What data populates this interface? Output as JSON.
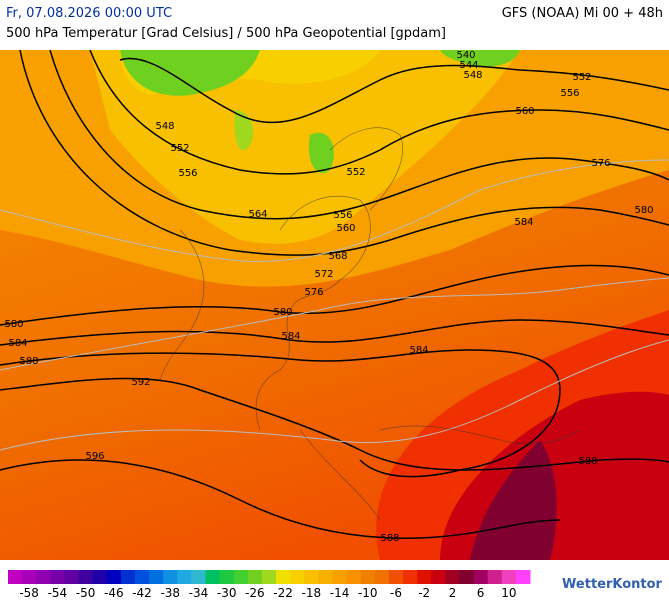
{
  "header": {
    "left": "Fr, 07.08.2026 00:00 UTC",
    "right": "GFS (NOAA) Mi 00 + 48h",
    "subtitle": "500 hPa Temperatur [Grad Celsius] / 500 hPa Geopotential [gpdam]"
  },
  "contour_labels": [
    "540",
    "544",
    "548",
    "552",
    "556",
    "560",
    "576",
    "580",
    "584",
    "548",
    "552",
    "556",
    "564",
    "552",
    "556",
    "560",
    "568",
    "572",
    "576",
    "580",
    "584",
    "580",
    "584",
    "588",
    "592",
    "596",
    "584",
    "588",
    "588"
  ],
  "colorbar": {
    "colors": [
      "#c000c0",
      "#a800b8",
      "#9000b0",
      "#7800a8",
      "#6000a0",
      "#4000a0",
      "#2000a8",
      "#0000c0",
      "#0030d0",
      "#0050e0",
      "#0070e0",
      "#1090e0",
      "#20a8e0",
      "#30b8d0",
      "#00c060",
      "#20c840",
      "#40d030",
      "#70d020",
      "#a0d820",
      "#f0e000",
      "#f8d000",
      "#f8c000",
      "#f8b000",
      "#f8a000",
      "#f89000",
      "#f08000",
      "#f07000",
      "#f05000",
      "#f03000",
      "#e01000",
      "#c80010",
      "#a00020",
      "#800030",
      "#a00060",
      "#d02090",
      "#f040c0",
      "#ff40ff"
    ],
    "labels": [
      -58,
      -54,
      -50,
      -46,
      -42,
      -38,
      -34,
      -30,
      -26,
      -22,
      -18,
      -14,
      -10,
      -6,
      -2,
      2,
      6,
      10
    ]
  },
  "logo": "WetterKontor"
}
